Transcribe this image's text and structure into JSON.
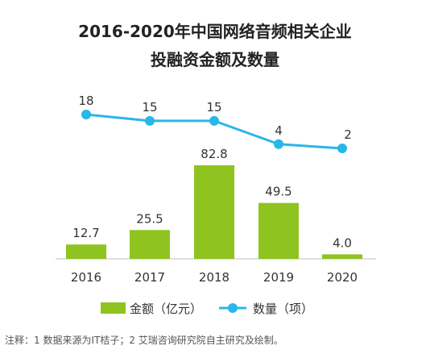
{
  "title_line1": "2016-2020年中国网络音频相关企业",
  "title_line2": "投融资金额及数量",
  "note": "注释：1 数据来源为IT桔子；2 艾瑞咨询研究院自主研究及绘制。",
  "colors": {
    "bar": "#8fc31f",
    "line": "#29b6e8"
  },
  "chart_data": {
    "type": "bar+line",
    "categories": [
      "2016",
      "2017",
      "2018",
      "2019",
      "2020"
    ],
    "series": [
      {
        "name": "金额（亿元）",
        "type": "bar",
        "values": [
          12.7,
          25.5,
          82.8,
          49.5,
          4.0
        ],
        "labels": [
          "12.7",
          "25.5",
          "82.8",
          "49.5",
          "4.0"
        ]
      },
      {
        "name": "数量（项）",
        "type": "line",
        "values": [
          18,
          15,
          15,
          4,
          2
        ],
        "labels": [
          "18",
          "15",
          "15",
          "4",
          "2"
        ]
      }
    ],
    "legend_position": "bottom",
    "grid": false
  }
}
